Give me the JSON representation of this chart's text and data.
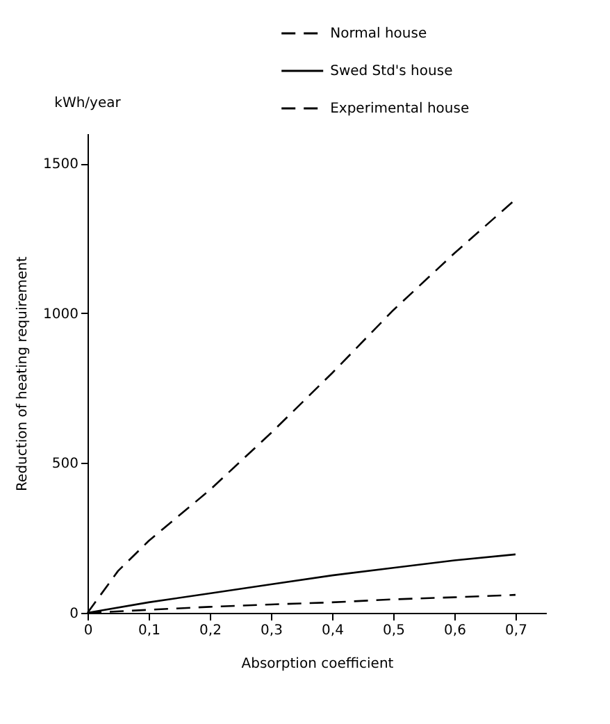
{
  "chart_data": {
    "type": "line",
    "xlabel": "Absorption coefficient",
    "ylabel": "Reduction of heating requirement",
    "annotations": [
      "kWh/year"
    ],
    "xlim": [
      0,
      0.75
    ],
    "ylim": [
      0,
      1600
    ],
    "xticks": [
      0,
      {
        "value": 0.1,
        "label": "0,1"
      },
      {
        "value": 0.2,
        "label": "0,2"
      },
      {
        "value": 0.3,
        "label": "0,3"
      },
      {
        "value": 0.4,
        "label": "0,4"
      },
      {
        "value": 0.5,
        "label": "0,5"
      },
      {
        "value": 0.6,
        "label": "0,6"
      },
      {
        "value": 0.7,
        "label": "0,7"
      }
    ],
    "yticks": [
      0,
      500,
      1000,
      1500
    ],
    "grid": false,
    "legend": "top right",
    "marker": "none",
    "series": [
      {
        "name": "Normal house",
        "color": "#000000",
        "line_style": "dashed",
        "x": [
          0,
          0.05,
          0.1,
          0.2,
          0.3,
          0.4,
          0.5,
          0.6,
          0.7
        ],
        "values": [
          0,
          140,
          240,
          410,
          600,
          800,
          1010,
          1200,
          1380
        ]
      },
      {
        "name": "Swed Std's house",
        "color": "#000000",
        "line_style": "solid",
        "x": [
          0,
          0.1,
          0.2,
          0.3,
          0.4,
          0.5,
          0.6,
          0.7
        ],
        "values": [
          0,
          35,
          65,
          95,
          125,
          150,
          175,
          195
        ]
      },
      {
        "name": "Experimental house",
        "color": "#000000",
        "line_style": "dashed",
        "x": [
          0,
          0.1,
          0.2,
          0.3,
          0.4,
          0.5,
          0.6,
          0.7
        ],
        "values": [
          0,
          10,
          20,
          28,
          35,
          45,
          52,
          60
        ]
      }
    ]
  }
}
